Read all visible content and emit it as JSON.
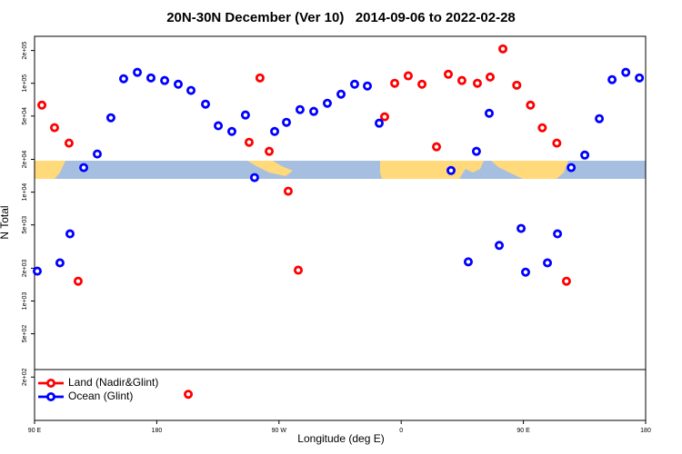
{
  "chart_data": {
    "type": "scatter",
    "title": "20N-30N December (Ver 10)   2014-09-06 to 2022-02-28",
    "x_label": "Longitude (deg E)",
    "y_label": "N Total",
    "xlim": [
      90,
      540
    ],
    "xticks": [
      {
        "value": 90,
        "label": "90 E"
      },
      {
        "value": 180,
        "label": "180"
      },
      {
        "value": 270,
        "label": "90 W"
      },
      {
        "value": 360,
        "label": "0"
      },
      {
        "value": 450,
        "label": "90 E"
      },
      {
        "value": 540,
        "label": "180"
      }
    ],
    "ylim": [
      80,
      270000
    ],
    "ylog": true,
    "yticks": [
      {
        "value": 200000,
        "label": "2e+05"
      },
      {
        "value": 100000,
        "label": "1e+05"
      },
      {
        "value": 50000,
        "label": "5e+04"
      },
      {
        "value": 20000,
        "label": "2e+04"
      },
      {
        "value": 10000,
        "label": "1e+04"
      },
      {
        "value": 5000,
        "label": "5e+03"
      },
      {
        "value": 2000,
        "label": "2e+03"
      },
      {
        "value": 1000,
        "label": "1e+03"
      },
      {
        "value": 500,
        "label": "5e+02"
      },
      {
        "value": 200,
        "label": "2e+02"
      }
    ],
    "legend": "bottom-left",
    "series": [
      {
        "name": "Land (Nadir&Glint)",
        "color": "#ff0000",
        "x": [
          95.4,
          104.7,
          115.4,
          122.1,
          203.2,
          248,
          256,
          262.8,
          276.8,
          284.2,
          347.8,
          355.2,
          365.2,
          375.3,
          386,
          394.7,
          404.7,
          416.1,
          425.5,
          434.9,
          445.1,
          455.2,
          463.9,
          474.6,
          481.7
        ],
        "values": [
          63000,
          39100,
          28200,
          1520,
          139,
          28700,
          112000,
          23700,
          10200,
          1920,
          49200,
          100000,
          117000,
          98000,
          26100,
          121000,
          106000,
          100000,
          114000,
          207000,
          96000,
          63000,
          39000,
          28200,
          1520
        ]
      },
      {
        "name": "Ocean (Glint)",
        "color": "#0000ff",
        "x": [
          92,
          108.7,
          116.1,
          126.2,
          136.2,
          146.2,
          155.6,
          165.7,
          175.7,
          185.8,
          195.8,
          205.2,
          215.9,
          225.3,
          235.3,
          245.3,
          252,
          266.8,
          275.5,
          285.5,
          295.6,
          305.6,
          315.7,
          325.7,
          335.1,
          343.8,
          396.7,
          409.4,
          415.4,
          424.8,
          432.2,
          448.3,
          451.6,
          467.7,
          475.1,
          485.2,
          495.2,
          505.9,
          515.3,
          525.4,
          535.4
        ],
        "values": [
          1880,
          2240,
          4140,
          16800,
          22400,
          48200,
          110000,
          126000,
          112000,
          106000,
          98000,
          86000,
          64300,
          40700,
          36100,
          51100,
          13600,
          36100,
          43800,
          57300,
          55200,
          65500,
          79400,
          98000,
          94400,
          43000,
          15800,
          2290,
          23700,
          53000,
          3240,
          4640,
          1840,
          2240,
          4140,
          16800,
          21900,
          47300,
          108000,
          126000,
          112000
        ]
      }
    ]
  }
}
